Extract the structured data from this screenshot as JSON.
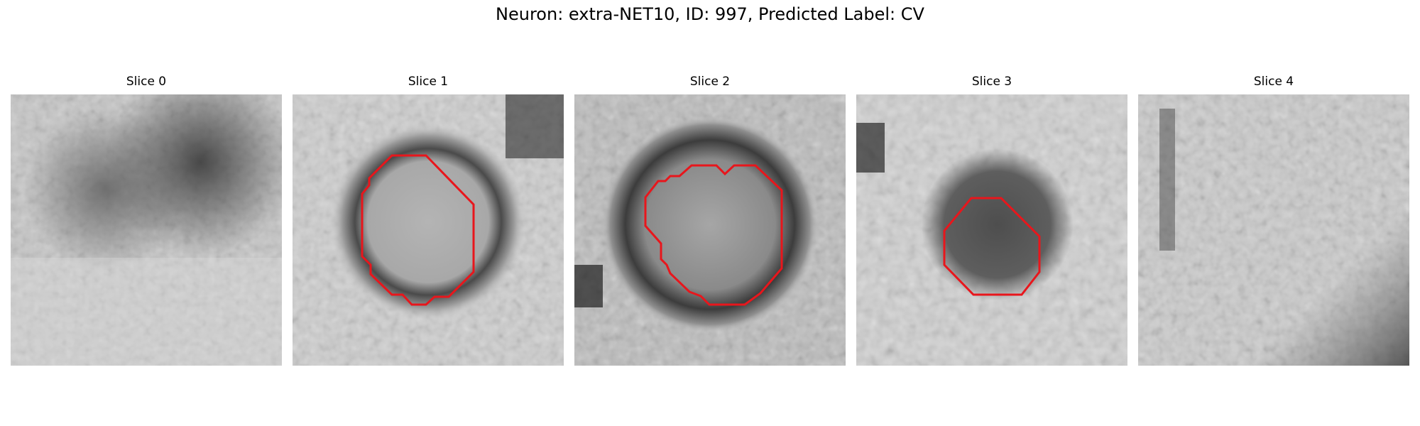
{
  "title": "Neuron: extra-NET10, ID: 997, Predicted Label: CV",
  "panels": [
    {
      "label": "Slice 0",
      "has_contour": false
    },
    {
      "label": "Slice 1",
      "has_contour": true
    },
    {
      "label": "Slice 2",
      "has_contour": true
    },
    {
      "label": "Slice 3",
      "has_contour": true
    },
    {
      "label": "Slice 4",
      "has_contour": false
    }
  ],
  "colors": {
    "contour": "#e8161c",
    "background": "#ffffff"
  }
}
